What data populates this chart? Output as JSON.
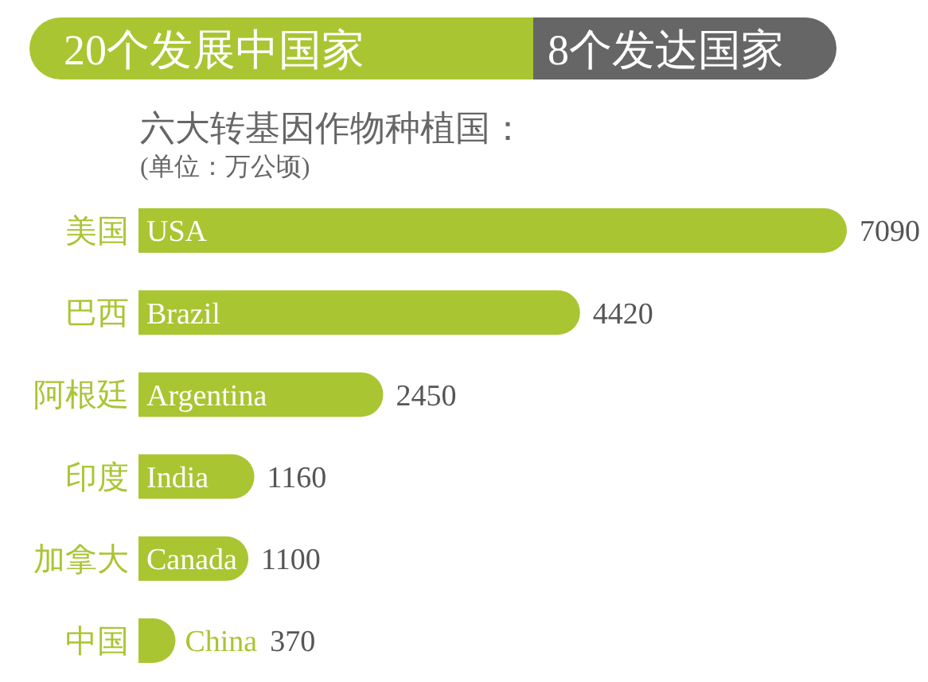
{
  "chart_data": {
    "type": "bar",
    "orientation": "horizontal",
    "title": "六大转基因作物种植国：",
    "subtitle": "(单位：万公顷)",
    "categories": [
      "美国",
      "巴西",
      "阿根廷",
      "印度",
      "加拿大",
      "中国"
    ],
    "values": [
      7090,
      4420,
      2450,
      1160,
      1100,
      370
    ],
    "color": "#a9c532",
    "data_labels": true,
    "tick_labels": "y",
    "annotations": [
      "20个发展中国家",
      "8个发达国家",
      "USA",
      "Brazil",
      "Argentina",
      "India",
      "Canada",
      "China"
    ]
  }
}
